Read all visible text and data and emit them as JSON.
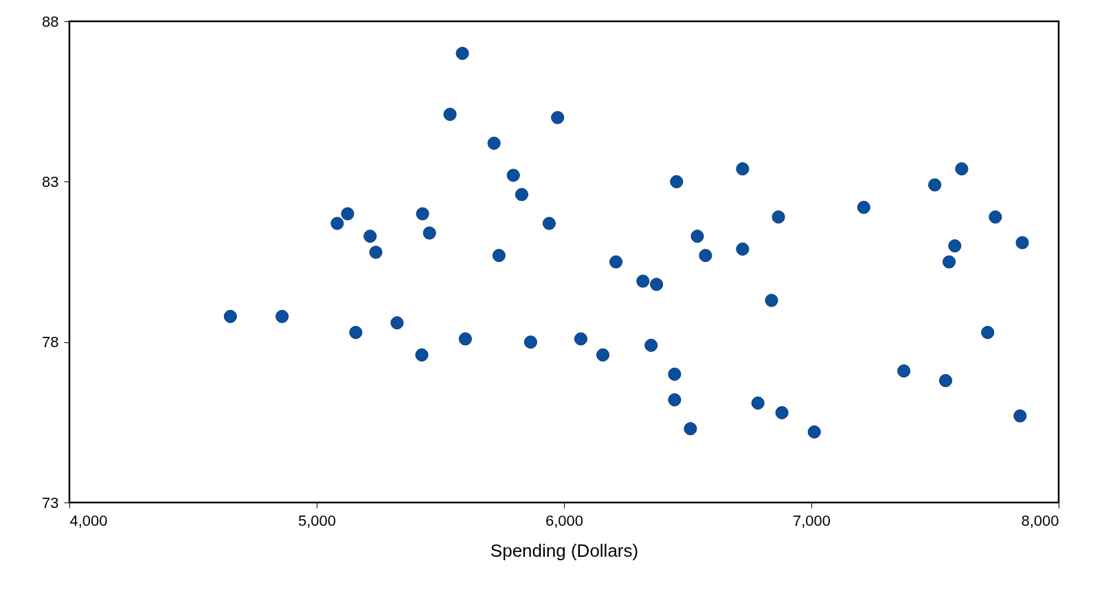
{
  "chart_data": {
    "type": "scatter",
    "xlabel": "Spending (Dollars)",
    "xlim": [
      4000,
      8000
    ],
    "ylim": [
      73,
      88
    ],
    "xticks": [
      {
        "value": 4000,
        "label": "4,000"
      },
      {
        "value": 5000,
        "label": "5,000"
      },
      {
        "value": 6000,
        "label": "6,000"
      },
      {
        "value": 7000,
        "label": "7,000"
      },
      {
        "value": 8000,
        "label": "8,000"
      }
    ],
    "yticks": [
      73,
      78,
      83,
      88
    ],
    "grid": false,
    "legend": false,
    "marker": "circle",
    "series": [
      {
        "color": "#0b4f9c",
        "x": [
          5589,
          5539,
          5974,
          5717,
          5795,
          5829,
          6455,
          6722,
          7608,
          7499,
          7212,
          7744,
          6867,
          5125,
          5083,
          5428,
          5456,
          5216,
          5239,
          5940,
          6539,
          6572,
          6722,
          5737,
          6210,
          6319,
          6374,
          6839,
          7853,
          7580,
          7557,
          7713,
          4651,
          4860,
          5158,
          5325,
          5425,
          5601,
          5865,
          6068,
          6157,
          6352,
          6447,
          6447,
          6784,
          6881,
          6511,
          7012,
          7374,
          7543,
          7844
        ],
        "values": [
          87.0,
          85.1,
          85.0,
          84.2,
          83.2,
          82.6,
          83.0,
          83.4,
          83.4,
          82.9,
          82.2,
          81.9,
          81.9,
          82.0,
          81.7,
          82.0,
          81.4,
          81.3,
          80.8,
          81.7,
          81.3,
          80.7,
          80.9,
          80.7,
          80.5,
          79.9,
          79.8,
          79.3,
          81.1,
          81.0,
          80.5,
          78.3,
          78.8,
          78.8,
          78.3,
          78.6,
          77.6,
          78.1,
          78.0,
          78.1,
          77.6,
          77.9,
          77.0,
          76.2,
          76.1,
          75.8,
          75.3,
          75.2,
          77.1,
          76.8,
          75.7
        ]
      }
    ]
  }
}
